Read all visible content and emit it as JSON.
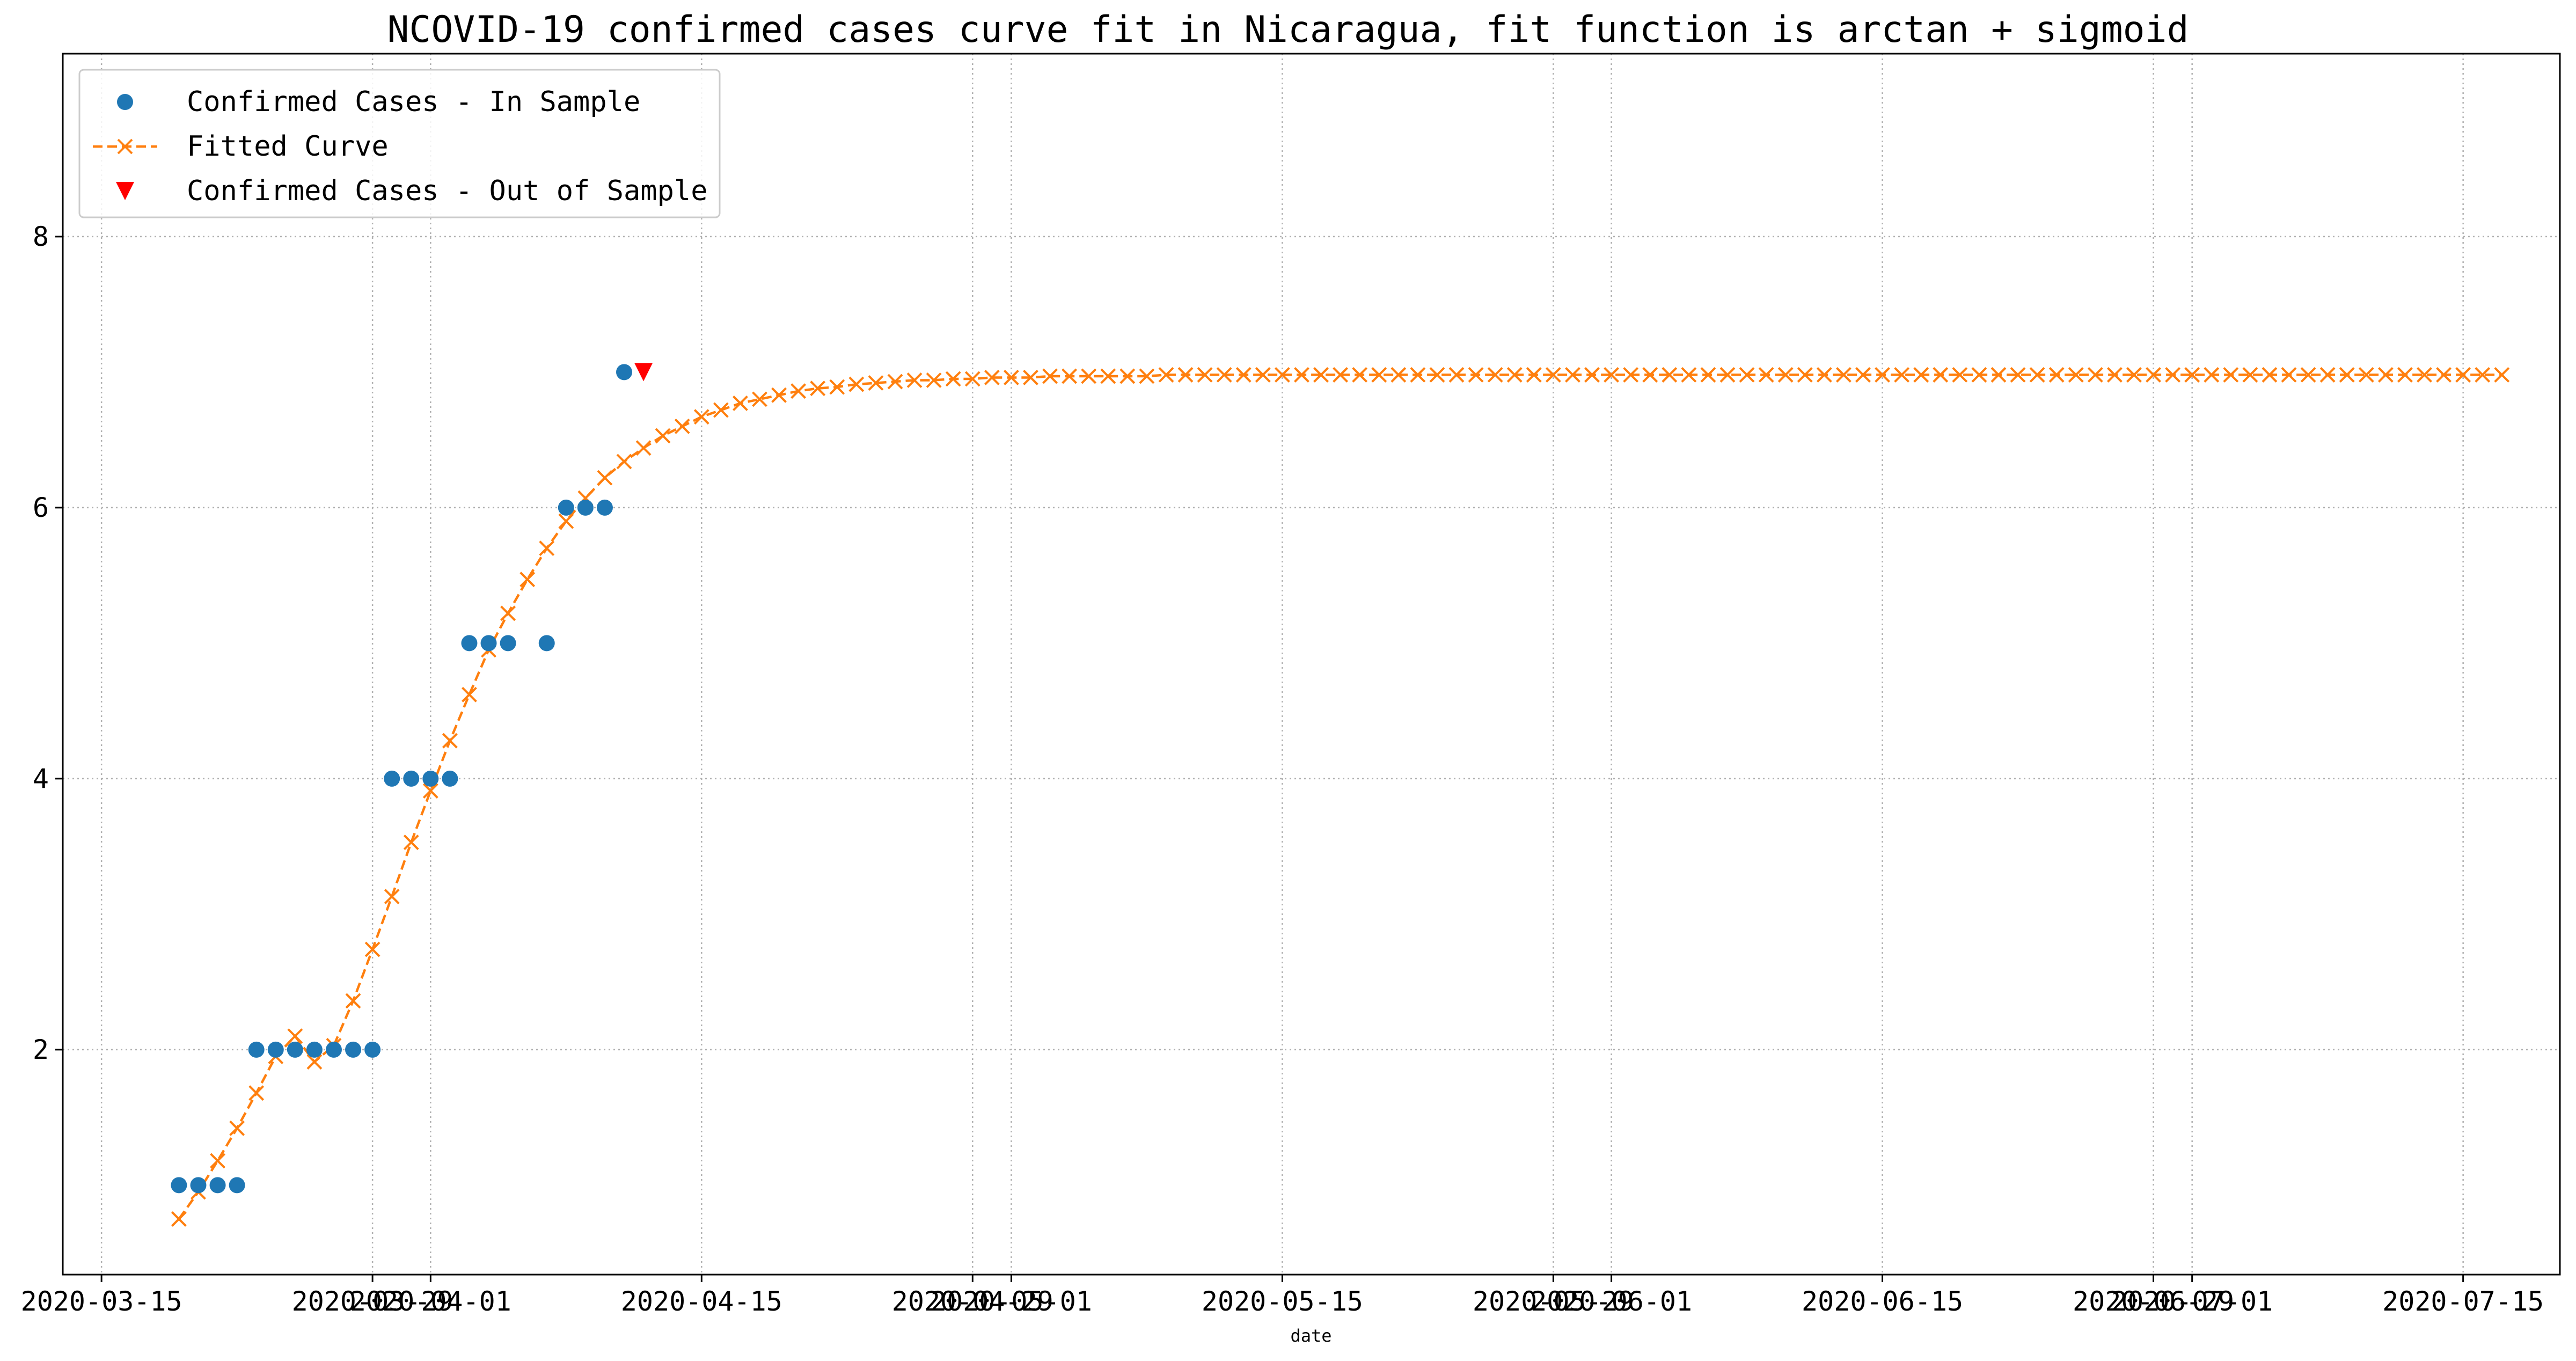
{
  "chart_data": {
    "type": "scatter",
    "title": "NCOVID-19 confirmed cases curve fit in Nicaragua, fit function is arctan + sigmoid",
    "xlabel": "date",
    "ylabel": "",
    "xlim": [
      "2020-03-13",
      "2020-07-20"
    ],
    "ylim": [
      0.34,
      9.35
    ],
    "grid": true,
    "grid_style": "dotted",
    "legend_position": "top-left",
    "x_ticks": [
      {
        "date": "2020-03-15",
        "label": "2020-03-15"
      },
      {
        "date": "2020-03-29",
        "label": "2020-03-29"
      },
      {
        "date": "2020-04-01",
        "label": "2020-04-01"
      },
      {
        "date": "2020-04-15",
        "label": "2020-04-15"
      },
      {
        "date": "2020-04-29",
        "label": "2020-04-29"
      },
      {
        "date": "2020-05-01",
        "label": "2020-05-01"
      },
      {
        "date": "2020-05-15",
        "label": "2020-05-15"
      },
      {
        "date": "2020-05-29",
        "label": "2020-05-29"
      },
      {
        "date": "2020-06-01",
        "label": "2020-06-01"
      },
      {
        "date": "2020-06-15",
        "label": "2020-06-15"
      },
      {
        "date": "2020-06-29",
        "label": "2020-06-29"
      },
      {
        "date": "2020-07-01",
        "label": "2020-07-01"
      },
      {
        "date": "2020-07-15",
        "label": "2020-07-15"
      }
    ],
    "y_ticks": [
      2,
      4,
      6,
      8
    ],
    "series": [
      {
        "name": "Confirmed Cases - In Sample",
        "marker": "circle",
        "color": "#1f77b4",
        "x": [
          "2020-03-19",
          "2020-03-20",
          "2020-03-21",
          "2020-03-22",
          "2020-03-23",
          "2020-03-24",
          "2020-03-25",
          "2020-03-26",
          "2020-03-27",
          "2020-03-28",
          "2020-03-29",
          "2020-03-30",
          "2020-03-31",
          "2020-04-01",
          "2020-04-02",
          "2020-04-03",
          "2020-04-04",
          "2020-04-05",
          "2020-04-06",
          "2020-04-07",
          "2020-04-08",
          "2020-04-09",
          "2020-04-10",
          "2020-04-11"
        ],
        "y": [
          1,
          1,
          1,
          1,
          2,
          2,
          2,
          2,
          2,
          2,
          2,
          4,
          4,
          4,
          4,
          5,
          5,
          5,
          null,
          5,
          6,
          6,
          6,
          7
        ]
      },
      {
        "name": "Fitted Curve",
        "marker": "x",
        "line_style": "dashed",
        "color": "#ff7f0e",
        "x_start": "2020-03-19",
        "x_step_days": 1,
        "y": [
          0.75,
          0.95,
          1.18,
          1.42,
          1.68,
          1.95,
          2.1,
          1.91,
          2.03,
          2.36,
          2.74,
          3.13,
          3.53,
          3.91,
          4.28,
          4.62,
          4.95,
          5.22,
          5.47,
          5.7,
          5.9,
          6.07,
          6.22,
          6.34,
          6.44,
          6.53,
          6.6,
          6.67,
          6.72,
          6.77,
          6.8,
          6.83,
          6.86,
          6.88,
          6.89,
          6.91,
          6.92,
          6.93,
          6.94,
          6.94,
          6.95,
          6.95,
          6.96,
          6.96,
          6.96,
          6.97,
          6.97,
          6.97,
          6.97,
          6.97,
          6.97,
          6.98,
          6.98,
          6.98,
          6.98,
          6.98,
          6.98,
          6.98,
          6.98,
          6.98,
          6.98,
          6.98,
          6.98,
          6.98,
          6.98,
          6.98,
          6.98,
          6.98,
          6.98,
          6.98,
          6.98,
          6.98,
          6.98,
          6.98,
          6.98,
          6.98,
          6.98,
          6.98,
          6.98,
          6.98,
          6.98,
          6.98,
          6.98,
          6.98,
          6.98,
          6.98,
          6.98,
          6.98,
          6.98,
          6.98,
          6.98,
          6.98,
          6.98,
          6.98,
          6.98,
          6.98,
          6.98,
          6.98,
          6.98,
          6.98,
          6.98,
          6.98,
          6.98,
          6.98,
          6.98,
          6.98,
          6.98,
          6.98,
          6.98,
          6.98,
          6.98,
          6.98,
          6.98,
          6.98,
          6.98,
          6.98,
          6.98,
          6.98,
          6.98,
          6.98,
          6.98
        ]
      },
      {
        "name": "Confirmed Cases - Out of Sample",
        "marker": "triangle-down",
        "color": "#ff0000",
        "x": [
          "2020-04-12"
        ],
        "y": [
          7
        ]
      }
    ]
  }
}
